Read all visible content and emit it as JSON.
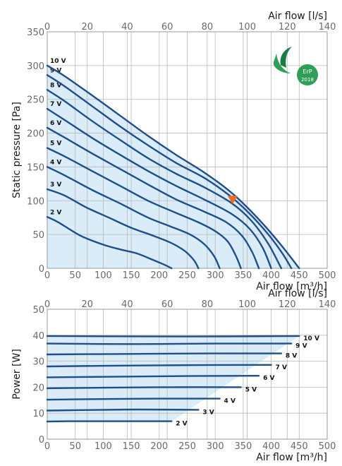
{
  "colors": {
    "curve": "#1f4e8c",
    "fill": "#d9ecf8",
    "grid": "#b8b8b8",
    "marker": "#f26a1b",
    "badge_green": "#2f9e58",
    "badge_dark": "#1b7a45"
  },
  "badge": {
    "line1": "ErP",
    "line2": "2018"
  },
  "chart_data": [
    {
      "type": "line",
      "xlabel": "Air flow [m³/h]",
      "x2label": "Air flow [l/s]",
      "ylabel": "Static pressure [Pa]",
      "xlim": [
        0,
        500
      ],
      "x2lim": [
        0,
        140
      ],
      "ylim": [
        0,
        350
      ],
      "xticks": [
        "0",
        "50",
        "100",
        "150",
        "200",
        "250",
        "300",
        "350",
        "400",
        "450",
        "500"
      ],
      "x2ticks": [
        "0",
        "20",
        "40",
        "60",
        "80",
        "100",
        "120",
        "140"
      ],
      "yticks": [
        "0",
        "50",
        "100",
        "150",
        "200",
        "250",
        "300",
        "350"
      ],
      "grid": true,
      "operating_point": {
        "x": 331,
        "y": 100
      },
      "series": [
        {
          "name": "2 V",
          "x": [
            0,
            20,
            60,
            100,
            130,
            160,
            190,
            210,
            222
          ],
          "y": [
            76,
            68,
            48,
            35,
            28,
            22,
            12,
            5,
            0
          ]
        },
        {
          "name": "3 V",
          "x": [
            0,
            30,
            70,
            110,
            150,
            190,
            220,
            245,
            262,
            270
          ],
          "y": [
            117,
            108,
            90,
            75,
            60,
            48,
            38,
            26,
            12,
            0
          ]
        },
        {
          "name": "4 V",
          "x": [
            0,
            30,
            80,
            130,
            180,
            220,
            255,
            280,
            298,
            308
          ],
          "y": [
            150,
            138,
            116,
            96,
            75,
            62,
            50,
            36,
            18,
            0
          ]
        },
        {
          "name": "5 V",
          "x": [
            0,
            30,
            80,
            130,
            180,
            230,
            270,
            300,
            322,
            336,
            346
          ],
          "y": [
            178,
            166,
            144,
            122,
            100,
            82,
            68,
            55,
            40,
            20,
            0
          ]
        },
        {
          "name": "6 V",
          "x": [
            0,
            30,
            80,
            130,
            180,
            230,
            280,
            320,
            348,
            366,
            378
          ],
          "y": [
            208,
            194,
            170,
            147,
            124,
            102,
            84,
            68,
            48,
            24,
            0
          ]
        },
        {
          "name": "7 V",
          "x": [
            0,
            30,
            80,
            130,
            180,
            230,
            280,
            330,
            362,
            385,
            400
          ],
          "y": [
            236,
            220,
            193,
            168,
            144,
            122,
            102,
            80,
            58,
            30,
            0
          ]
        },
        {
          "name": "8 V",
          "x": [
            0,
            30,
            80,
            130,
            180,
            230,
            280,
            330,
            365,
            395,
            418
          ],
          "y": [
            264,
            248,
            218,
            190,
            163,
            140,
            120,
            96,
            70,
            36,
            0
          ]
        },
        {
          "name": "9 V",
          "x": [
            0,
            30,
            80,
            130,
            180,
            230,
            280,
            325,
            360,
            395,
            420,
            436
          ],
          "y": [
            286,
            270,
            240,
            210,
            182,
            156,
            134,
            108,
            82,
            50,
            22,
            0
          ]
        },
        {
          "name": "10 V",
          "x": [
            0,
            30,
            80,
            130,
            180,
            230,
            280,
            320,
            350,
            385,
            420,
            450
          ],
          "y": [
            300,
            285,
            256,
            226,
            196,
            168,
            142,
            118,
            96,
            66,
            32,
            0
          ]
        }
      ]
    },
    {
      "type": "line",
      "xlabel": "Air flow [m³/h]",
      "x2label": "Air flow [l/s]",
      "ylabel": "Power [W]",
      "xlim": [
        0,
        500
      ],
      "x2lim": [
        0,
        140
      ],
      "ylim": [
        0,
        50
      ],
      "xticks": [
        "0",
        "50",
        "100",
        "150",
        "200",
        "250",
        "300",
        "350",
        "400",
        "450",
        "500"
      ],
      "x2ticks": [
        "0",
        "20",
        "40",
        "60",
        "80",
        "100",
        "120",
        "140"
      ],
      "yticks": [
        "0",
        "10",
        "20",
        "30",
        "40",
        "50"
      ],
      "grid": true,
      "series": [
        {
          "name": "2 V",
          "x": [
            0,
            40,
            120,
            222
          ],
          "y": [
            6.8,
            6.9,
            6.9,
            6.9
          ]
        },
        {
          "name": "3 V",
          "x": [
            0,
            60,
            160,
            270
          ],
          "y": [
            11.0,
            11.2,
            11.4,
            11.3
          ]
        },
        {
          "name": "4 V",
          "x": [
            0,
            80,
            200,
            308
          ],
          "y": [
            15.2,
            15.4,
            15.6,
            15.6
          ]
        },
        {
          "name": "5 V",
          "x": [
            0,
            100,
            220,
            346
          ],
          "y": [
            19.6,
            19.8,
            20.0,
            20.0
          ]
        },
        {
          "name": "6 V",
          "x": [
            0,
            100,
            250,
            378
          ],
          "y": [
            23.8,
            24.0,
            24.3,
            24.4
          ]
        },
        {
          "name": "7 V",
          "x": [
            0,
            120,
            270,
            400
          ],
          "y": [
            28.0,
            28.3,
            28.5,
            28.6
          ]
        },
        {
          "name": "8 V",
          "x": [
            0,
            140,
            290,
            418
          ],
          "y": [
            32.6,
            32.8,
            33.0,
            33.0
          ]
        },
        {
          "name": "9 V",
          "x": [
            0,
            150,
            300,
            436
          ],
          "y": [
            36.8,
            36.6,
            36.8,
            36.8
          ]
        },
        {
          "name": "10 V",
          "x": [
            0,
            100,
            250,
            450
          ],
          "y": [
            39.7,
            39.6,
            39.5,
            39.7
          ]
        }
      ]
    }
  ]
}
